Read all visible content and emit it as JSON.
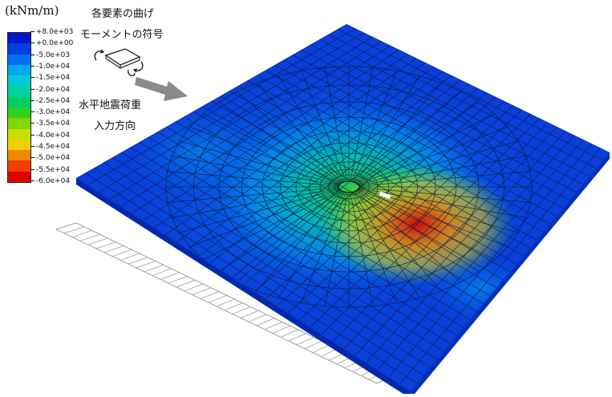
{
  "unit_label": "(kNm/m)",
  "annotations": {
    "title_line1": "各要素の曲げ",
    "title_line2": "モーメントの符号",
    "direction_line1": "水平地震荷重",
    "direction_line2": "入力方向"
  },
  "legend": {
    "ticks": [
      "+8.0e+03",
      "+0.0e+00",
      "-5.0e+03",
      "-1.0e+04",
      "-1.5e+04",
      "-2.0e+04",
      "-2.5e+04",
      "-3.0e+04",
      "-3.5e+04",
      "-4.0e+04",
      "-4.5e+04",
      "-5.0e+04",
      "-5.5e+04",
      "-6.0e+04"
    ],
    "colors": [
      "#0018c8",
      "#0040e0",
      "#0070f0",
      "#00a8f0",
      "#00c8d8",
      "#00d0a0",
      "#00d060",
      "#30d020",
      "#80d800",
      "#c8e000",
      "#f0d000",
      "#f08800",
      "#f04000",
      "#e00000"
    ]
  },
  "icons": [
    "moment-sign-icon",
    "load-direction-arrow-icon"
  ]
}
